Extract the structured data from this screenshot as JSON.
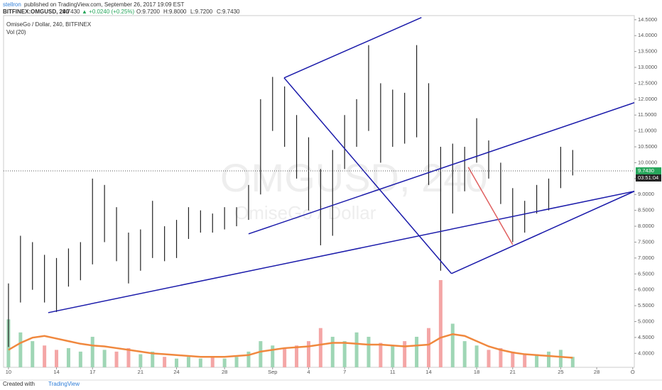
{
  "header": {
    "author": "stellron",
    "published": "published on TradingView.com, September 26, 2017 19:09 EST",
    "symbol": "BITFINEX:OMGUSD, 240",
    "last": "9.7430",
    "change": "▲ +0.0240 (+0.25%)",
    "open": "O:9.7200",
    "high": "H:9.8000",
    "low": "L:9.7200",
    "close": "C:9.7430"
  },
  "footer": {
    "created": "Created with",
    "brand": "TradingView"
  },
  "chart_data": {
    "type": "ohlc",
    "title": "OmiseGo / Dollar, 240, BITFINEX",
    "indicator": "Vol (20)",
    "watermark": "OMGUSD, 240",
    "watermark_sub": "OmiseGo / Dollar",
    "color": "#222222",
    "volume_up_color": "#9fd6b5",
    "volume_down_color": "#f4a6a6",
    "volume_ma_color": "#f0883e",
    "x": [
      0,
      1,
      2,
      3,
      4,
      5,
      6,
      7,
      8,
      9,
      10,
      11,
      12,
      13,
      14,
      15,
      16,
      17,
      18,
      19,
      20,
      21,
      22,
      23,
      24,
      25,
      26,
      27,
      28,
      29,
      30,
      31,
      32,
      33,
      34,
      35,
      36,
      37,
      38,
      39,
      40,
      41,
      42,
      43,
      44,
      45,
      46,
      47
    ],
    "high": [
      6.2,
      7.7,
      7.5,
      7.1,
      7.0,
      7.3,
      7.5,
      9.5,
      9.3,
      8.6,
      7.8,
      7.9,
      8.8,
      8.0,
      8.2,
      8.6,
      8.5,
      8.4,
      8.6,
      8.6,
      9.3,
      12.0,
      12.7,
      12.4,
      11.5,
      10.8,
      9.8,
      10.4,
      11.5,
      12.0,
      13.7,
      12.5,
      12.3,
      12.2,
      13.7,
      12.5,
      10.5,
      10.6,
      10.5,
      11.4,
      10.7,
      10.0,
      9.2,
      8.8,
      9.3,
      9.5,
      10.5,
      10.4
    ],
    "low": [
      4.2,
      5.6,
      6.0,
      5.6,
      5.3,
      6.1,
      6.3,
      6.8,
      7.5,
      6.9,
      6.2,
      6.6,
      7.0,
      6.9,
      7.0,
      7.6,
      7.8,
      7.8,
      7.9,
      8.0,
      8.2,
      9.0,
      11.0,
      10.5,
      9.5,
      8.5,
      7.4,
      7.7,
      9.8,
      10.5,
      11.0,
      10.0,
      10.5,
      10.6,
      10.8,
      9.3,
      6.6,
      8.4,
      9.1,
      10.0,
      9.5,
      8.7,
      7.5,
      7.8,
      8.4,
      8.5,
      9.2,
      9.6
    ],
    "volume": [
      55,
      40,
      30,
      25,
      20,
      22,
      18,
      35,
      20,
      18,
      22,
      15,
      18,
      12,
      10,
      12,
      10,
      12,
      10,
      12,
      18,
      30,
      25,
      22,
      25,
      30,
      45,
      35,
      30,
      40,
      35,
      28,
      25,
      30,
      35,
      45,
      100,
      50,
      30,
      25,
      20,
      22,
      18,
      15,
      15,
      18,
      20,
      12
    ],
    "volume_ma": [
      20,
      28,
      34,
      36,
      33,
      30,
      27,
      25,
      24,
      22,
      20,
      18,
      16,
      15,
      14,
      13,
      12,
      12,
      12,
      13,
      14,
      18,
      20,
      22,
      23,
      24,
      26,
      28,
      28,
      27,
      26,
      26,
      25,
      24,
      25,
      26,
      34,
      38,
      36,
      30,
      24,
      20,
      17,
      15,
      14,
      13,
      12,
      11
    ],
    "last_price": {
      "value": 9.743,
      "label": "9.7430"
    },
    "countdown": "03:51:04",
    "drawings": [
      {
        "color": "#1a1aaa",
        "x": [
          3.31,
          52.13
        ],
        "y": [
          5.28,
          9.1
        ]
      },
      {
        "color": "#1a1aaa",
        "x": [
          22.96,
          34.4
        ],
        "y": [
          12.67,
          14.57
        ]
      },
      {
        "color": "#1a1aaa",
        "x": [
          22.96,
          36.9
        ],
        "y": [
          12.67,
          6.51
        ]
      },
      {
        "color": "#1a1aaa",
        "x": [
          36.9,
          52.13
        ],
        "y": [
          6.51,
          9.1
        ]
      },
      {
        "color": "#1a1aaa",
        "x": [
          20.0,
          52.13
        ],
        "y": [
          7.76,
          11.89
        ]
      },
      {
        "color": "#e06060",
        "x": [
          38.3,
          42.0
        ],
        "y": [
          9.86,
          7.42
        ]
      }
    ],
    "xlim": [
      -0.41,
      52.13
    ],
    "ylim": [
      3.56,
      14.63
    ],
    "xticks": [
      {
        "value": 0,
        "label": "10"
      },
      {
        "value": 4,
        "label": "14"
      },
      {
        "value": 7,
        "label": "17"
      },
      {
        "value": 11,
        "label": "21"
      },
      {
        "value": 14,
        "label": "24"
      },
      {
        "value": 18,
        "label": "28"
      },
      {
        "value": 22,
        "label": "Sep"
      },
      {
        "value": 25,
        "label": "4"
      },
      {
        "value": 28,
        "label": "7"
      },
      {
        "value": 32,
        "label": "11"
      },
      {
        "value": 35,
        "label": "14"
      },
      {
        "value": 39,
        "label": "18"
      },
      {
        "value": 42,
        "label": "21"
      },
      {
        "value": 46,
        "label": "25"
      },
      {
        "value": 49,
        "label": "28"
      },
      {
        "value": 52,
        "label": "O"
      }
    ],
    "yticks": [
      {
        "value": 4,
        "label": "4.0000"
      },
      {
        "value": 4.5,
        "label": "4.5000"
      },
      {
        "value": 5,
        "label": "5.0000"
      },
      {
        "value": 5.5,
        "label": "5.5000"
      },
      {
        "value": 6,
        "label": "6.0000"
      },
      {
        "value": 6.5,
        "label": "6.5000"
      },
      {
        "value": 7,
        "label": "7.0000"
      },
      {
        "value": 7.5,
        "label": "7.5000"
      },
      {
        "value": 8,
        "label": "8.0000"
      },
      {
        "value": 8.5,
        "label": "8.5000"
      },
      {
        "value": 9,
        "label": "9.0000"
      },
      {
        "value": 9.5,
        "label": "9.5000"
      },
      {
        "value": 10,
        "label": "10.0000"
      },
      {
        "value": 10.5,
        "label": "10.5000"
      },
      {
        "value": 11,
        "label": "11.0000"
      },
      {
        "value": 11.5,
        "label": "11.5000"
      },
      {
        "value": 12,
        "label": "12.0000"
      },
      {
        "value": 12.5,
        "label": "12.5000"
      },
      {
        "value": 13,
        "label": "13.0000"
      },
      {
        "value": 13.5,
        "label": "13.5000"
      },
      {
        "value": 14,
        "label": "14.0000"
      },
      {
        "value": 14.5,
        "label": "14.5000"
      }
    ]
  }
}
